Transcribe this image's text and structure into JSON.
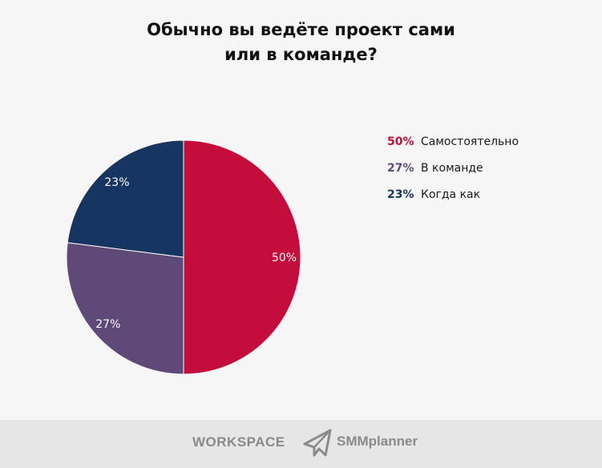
{
  "chart_data": {
    "type": "pie",
    "title_lines": [
      "Обычно вы ведёте проект сами",
      "или в команде?"
    ],
    "categories": [
      "Самостоятельно",
      "В команде",
      "Когда как"
    ],
    "values": [
      50,
      27,
      23
    ],
    "labels": [
      "50%",
      "27%",
      "23%"
    ],
    "colors": [
      "#c40d3a",
      "#5e4979",
      "#163560"
    ],
    "legend_placement": "right"
  },
  "footer": {
    "logo_workspace": "WORKSPACE",
    "logo_smmplanner": "SMMplanner"
  }
}
